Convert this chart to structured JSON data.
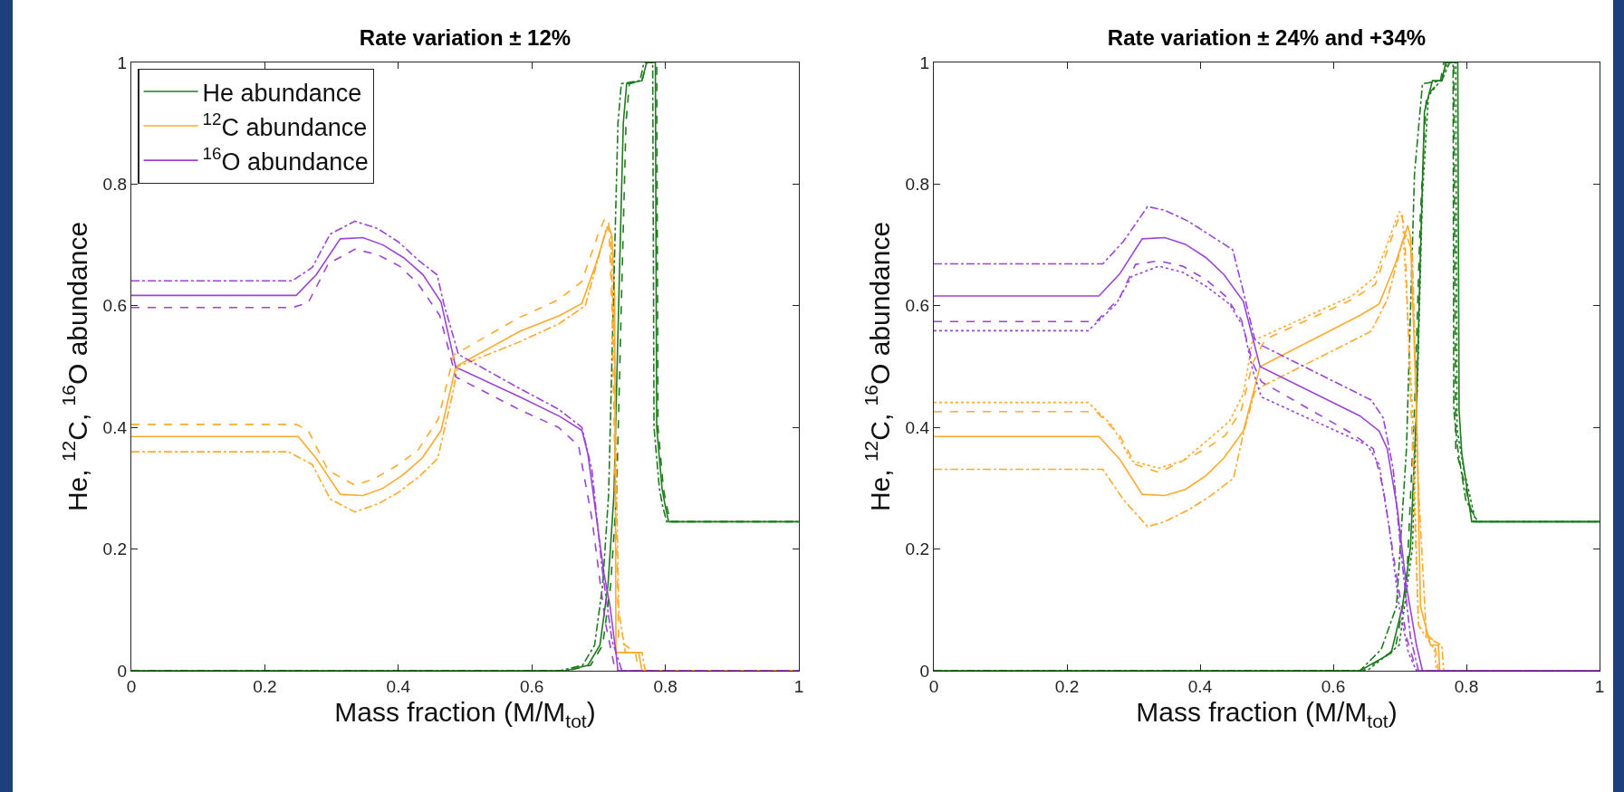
{
  "chart_data": [
    {
      "type": "line",
      "title": "Rate variation ± 12%",
      "xlabel": "Mass fraction (M/M$_{tot}$)",
      "ylabel": "He, $^{12}$C, $^{16}$O abundance",
      "xlim": [
        0,
        1
      ],
      "xticks": [
        0,
        0.2,
        0.4,
        0.6,
        0.8,
        1
      ],
      "ylim": [
        0,
        1
      ],
      "yticks": [
        0,
        0.2,
        0.4,
        0.6,
        0.8,
        1
      ],
      "grid": false,
      "legend": "top left",
      "series": [
        {
          "name": "He abundance",
          "color": "#1e7b1e",
          "line_style": "solid",
          "x": [
            0,
            0.65,
            0.684,
            0.702,
            0.714,
            0.723,
            0.73,
            0.737,
            0.742,
            0.765,
            0.772,
            0.785,
            0.787,
            0.795,
            0.8,
            0.805,
            1
          ],
          "values": [
            0,
            0,
            0.009,
            0.042,
            0.14,
            0.29,
            0.6,
            0.9,
            0.965,
            0.97,
            1,
            1,
            0.4,
            0.3,
            0.27,
            0.245,
            0.245
          ]
        },
        {
          "name": "$^{12}$C abundance",
          "color": "#ffaa2b",
          "line_style": "solid",
          "x": [
            0,
            0.25,
            0.277,
            0.313,
            0.347,
            0.377,
            0.407,
            0.436,
            0.464,
            0.486,
            0.582,
            0.642,
            0.675,
            0.696,
            0.711,
            0.715,
            0.72,
            0.724,
            0.726,
            0.76,
            0.765,
            1
          ],
          "values": [
            0.385,
            0.385,
            0.349,
            0.29,
            0.288,
            0.3,
            0.322,
            0.35,
            0.395,
            0.5,
            0.558,
            0.584,
            0.604,
            0.669,
            0.722,
            0.731,
            0.715,
            0.617,
            0.03,
            0.03,
            0,
            0
          ]
        },
        {
          "name": "$^{16}$O abundance",
          "color": "#9a45d6",
          "line_style": "solid",
          "x": [
            0,
            0.247,
            0.277,
            0.313,
            0.347,
            0.377,
            0.408,
            0.437,
            0.464,
            0.486,
            0.582,
            0.642,
            0.675,
            0.684,
            0.696,
            0.708,
            0.717,
            0.726,
            0.729,
            1
          ],
          "values": [
            0.617,
            0.617,
            0.651,
            0.71,
            0.712,
            0.7,
            0.679,
            0.651,
            0.606,
            0.499,
            0.45,
            0.418,
            0.395,
            0.356,
            0.258,
            0.16,
            0.107,
            0.029,
            0,
            0
          ]
        },
        {
          "color": "#1e7b1e",
          "line_style": "dashed",
          "x": [
            0,
            0.654,
            0.688,
            0.706,
            0.718,
            0.727,
            0.734,
            0.741,
            0.746,
            0.765,
            0.772,
            0.787,
            0.789,
            0.797,
            0.802,
            0.808,
            1
          ],
          "values": [
            0,
            0,
            0.009,
            0.042,
            0.14,
            0.29,
            0.6,
            0.9,
            0.965,
            0.97,
            1,
            1,
            0.4,
            0.3,
            0.27,
            0.245,
            0.245
          ]
        },
        {
          "color": "#1e7b1e",
          "line_style": "dashdot",
          "x": [
            0,
            0.642,
            0.676,
            0.694,
            0.706,
            0.715,
            0.722,
            0.729,
            0.734,
            0.762,
            0.768,
            0.781,
            0.783,
            0.791,
            0.796,
            0.802,
            1
          ],
          "values": [
            0,
            0,
            0.009,
            0.042,
            0.14,
            0.29,
            0.6,
            0.9,
            0.965,
            0.97,
            1,
            1,
            0.4,
            0.3,
            0.27,
            0.245,
            0.245
          ]
        },
        {
          "color": "#ffaa2b",
          "line_style": "dashed",
          "x": [
            0,
            0.247,
            0.265,
            0.295,
            0.335,
            0.363,
            0.396,
            0.429,
            0.46,
            0.483,
            0.58,
            0.64,
            0.675,
            0.7,
            0.71,
            0.715,
            0.72,
            0.725,
            0.73,
            0.755,
            0.76,
            1
          ],
          "values": [
            0.405,
            0.405,
            0.395,
            0.329,
            0.305,
            0.315,
            0.336,
            0.362,
            0.414,
            0.519,
            0.58,
            0.61,
            0.64,
            0.72,
            0.745,
            0.74,
            0.6,
            0.3,
            0.05,
            0.03,
            0,
            0
          ]
        },
        {
          "color": "#ffaa2b",
          "line_style": "dashdot",
          "x": [
            0,
            0.235,
            0.271,
            0.298,
            0.335,
            0.369,
            0.4,
            0.432,
            0.459,
            0.481,
            0.489,
            0.58,
            0.64,
            0.68,
            0.7,
            0.712,
            0.718,
            0.724,
            0.73,
            0.74,
            0.765,
            0.77,
            1
          ],
          "values": [
            0.36,
            0.36,
            0.339,
            0.282,
            0.261,
            0.274,
            0.293,
            0.32,
            0.349,
            0.454,
            0.5,
            0.54,
            0.57,
            0.6,
            0.68,
            0.73,
            0.72,
            0.5,
            0.1,
            0.03,
            0.03,
            0,
            0
          ]
        },
        {
          "color": "#9a45d6",
          "line_style": "dashed",
          "x": [
            0,
            0.241,
            0.265,
            0.295,
            0.335,
            0.369,
            0.402,
            0.429,
            0.462,
            0.486,
            0.58,
            0.64,
            0.67,
            0.69,
            0.71,
            0.725,
            1
          ],
          "values": [
            0.597,
            0.597,
            0.605,
            0.669,
            0.693,
            0.684,
            0.665,
            0.637,
            0.584,
            0.483,
            0.43,
            0.4,
            0.37,
            0.25,
            0.08,
            0,
            0
          ]
        },
        {
          "color": "#9a45d6",
          "line_style": "dashdot",
          "x": [
            0,
            0.241,
            0.271,
            0.298,
            0.335,
            0.369,
            0.4,
            0.432,
            0.458,
            0.468,
            0.49,
            0.58,
            0.64,
            0.675,
            0.69,
            0.705,
            0.72,
            0.735,
            1
          ],
          "values": [
            0.641,
            0.641,
            0.663,
            0.718,
            0.739,
            0.727,
            0.705,
            0.673,
            0.651,
            0.604,
            0.52,
            0.465,
            0.43,
            0.4,
            0.33,
            0.17,
            0.05,
            0,
            0
          ]
        }
      ]
    },
    {
      "type": "line",
      "title": "Rate variation ± 24% and +34%",
      "xlabel": "Mass fraction (M/M$_{tot}$)",
      "ylabel": "He, $^{12}$C, $^{16}$O abundance",
      "xlim": [
        0,
        1
      ],
      "xticks": [
        0,
        0.2,
        0.4,
        0.6,
        0.8,
        1
      ],
      "ylim": [
        0,
        1
      ],
      "yticks": [
        0,
        0.2,
        0.4,
        0.6,
        0.8,
        1
      ],
      "grid": false,
      "legend": false,
      "series": [
        {
          "color": "#1e7b1e",
          "line_style": "solid",
          "x": [
            0,
            0.64,
            0.687,
            0.704,
            0.716,
            0.725,
            0.731,
            0.737,
            0.749,
            0.763,
            0.769,
            0.787,
            0.789,
            0.793,
            0.808,
            1
          ],
          "values": [
            0,
            0,
            0.029,
            0.106,
            0.203,
            0.429,
            0.687,
            0.919,
            0.97,
            0.97,
            1,
            1,
            0.429,
            0.358,
            0.245,
            0.245
          ]
        },
        {
          "color": "#1e7b1e",
          "line_style": "dashed",
          "x": [
            0,
            0.645,
            0.693,
            0.71,
            0.722,
            0.731,
            0.74,
            0.761,
            0.766,
            0.781,
            0.784,
            0.796,
            0.811,
            1
          ],
          "values": [
            0,
            0,
            0.035,
            0.139,
            0.429,
            0.752,
            0.945,
            0.97,
            1,
            1,
            0.365,
            0.313,
            0.245,
            0.245
          ]
        },
        {
          "color": "#1e7b1e",
          "line_style": "dashdot",
          "x": [
            0,
            0.64,
            0.672,
            0.695,
            0.71,
            0.722,
            0.734,
            0.763,
            0.775,
            0.78,
            0.781,
            0.787,
            0.799,
            0.817,
            1
          ],
          "values": [
            0,
            0,
            0.035,
            0.106,
            0.365,
            0.816,
            0.965,
            0.97,
            1,
            1,
            0.429,
            0.365,
            0.281,
            0.245,
            0.245
          ]
        },
        {
          "color": "#1e7b1e",
          "line_style": "dotted",
          "x": [
            0,
            0.651,
            0.699,
            0.719,
            0.727,
            0.734,
            0.743,
            0.761,
            0.772,
            0.784,
            0.786,
            0.796,
            0.814,
            1
          ],
          "values": [
            0,
            0,
            0.042,
            0.203,
            0.494,
            0.784,
            0.945,
            0.97,
            1,
            1,
            0.397,
            0.332,
            0.245,
            0.245
          ]
        },
        {
          "color": "#ffaa2b",
          "line_style": "solid",
          "x": [
            0,
            0.248,
            0.279,
            0.313,
            0.347,
            0.378,
            0.409,
            0.436,
            0.465,
            0.49,
            0.64,
            0.669,
            0.693,
            0.712,
            0.716,
            0.725,
            0.731,
            0.746,
            0.758,
            0.76,
            1
          ],
          "values": [
            0.385,
            0.385,
            0.348,
            0.29,
            0.288,
            0.298,
            0.321,
            0.35,
            0.394,
            0.5,
            0.584,
            0.603,
            0.668,
            0.732,
            0.713,
            0.429,
            0.106,
            0.042,
            0.042,
            0,
            0
          ]
        },
        {
          "color": "#ffaa2b",
          "line_style": "dashed",
          "x": [
            0,
            0.244,
            0.279,
            0.303,
            0.338,
            0.374,
            0.409,
            0.438,
            0.462,
            0.479,
            0.498,
            0.628,
            0.663,
            0.701,
            0.707,
            0.719,
            0.728,
            0.752,
            0.758,
            1
          ],
          "values": [
            0.426,
            0.426,
            0.387,
            0.339,
            0.326,
            0.345,
            0.365,
            0.387,
            0.429,
            0.506,
            0.545,
            0.61,
            0.635,
            0.752,
            0.732,
            0.365,
            0.074,
            0.048,
            0,
            0
          ]
        },
        {
          "color": "#ffaa2b",
          "line_style": "dashdot",
          "x": [
            0,
            0.254,
            0.285,
            0.321,
            0.347,
            0.382,
            0.415,
            0.45,
            0.465,
            0.482,
            0.494,
            0.657,
            0.681,
            0.704,
            0.71,
            0.719,
            0.728,
            0.74,
            0.763,
            0.766,
            1
          ],
          "values": [
            0.331,
            0.331,
            0.281,
            0.237,
            0.245,
            0.264,
            0.287,
            0.316,
            0.39,
            0.458,
            0.468,
            0.558,
            0.61,
            0.706,
            0.716,
            0.687,
            0.3,
            0.055,
            0.042,
            0,
            0
          ]
        },
        {
          "color": "#ffaa2b",
          "line_style": "dotted",
          "x": [
            0,
            0.232,
            0.268,
            0.297,
            0.338,
            0.374,
            0.409,
            0.444,
            0.465,
            0.479,
            0.491,
            0.628,
            0.663,
            0.699,
            0.704,
            0.719,
            0.728,
            0.752,
            0.755,
            1
          ],
          "values": [
            0.441,
            0.441,
            0.403,
            0.345,
            0.333,
            0.345,
            0.377,
            0.41,
            0.455,
            0.545,
            0.548,
            0.616,
            0.648,
            0.755,
            0.748,
            0.429,
            0.074,
            0.035,
            0,
            0
          ]
        },
        {
          "color": "#9a45d6",
          "line_style": "solid",
          "x": [
            0,
            0.248,
            0.279,
            0.313,
            0.347,
            0.378,
            0.409,
            0.436,
            0.465,
            0.49,
            0.64,
            0.669,
            0.681,
            0.696,
            0.71,
            0.725,
            0.734,
            1
          ],
          "values": [
            0.616,
            0.616,
            0.652,
            0.71,
            0.712,
            0.701,
            0.679,
            0.651,
            0.607,
            0.5,
            0.419,
            0.394,
            0.365,
            0.268,
            0.139,
            0.042,
            0,
            0
          ]
        },
        {
          "color": "#9a45d6",
          "line_style": "dashed",
          "x": [
            0,
            0.244,
            0.279,
            0.303,
            0.338,
            0.374,
            0.409,
            0.438,
            0.462,
            0.479,
            0.492,
            0.628,
            0.66,
            0.675,
            0.693,
            0.71,
            0.725,
            1
          ],
          "values": [
            0.574,
            0.574,
            0.613,
            0.668,
            0.674,
            0.665,
            0.643,
            0.616,
            0.577,
            0.506,
            0.475,
            0.39,
            0.365,
            0.3,
            0.171,
            0.055,
            0,
            0
          ]
        },
        {
          "color": "#9a45d6",
          "line_style": "dashdot",
          "x": [
            0,
            0.254,
            0.285,
            0.321,
            0.347,
            0.382,
            0.415,
            0.449,
            0.465,
            0.482,
            0.492,
            0.657,
            0.675,
            0.69,
            0.701,
            0.716,
            0.728,
            1
          ],
          "values": [
            0.669,
            0.669,
            0.706,
            0.763,
            0.757,
            0.739,
            0.716,
            0.692,
            0.623,
            0.545,
            0.535,
            0.445,
            0.416,
            0.332,
            0.203,
            0.055,
            0,
            0
          ]
        },
        {
          "color": "#9a45d6",
          "line_style": "dotted",
          "x": [
            0,
            0.232,
            0.274,
            0.297,
            0.338,
            0.374,
            0.409,
            0.444,
            0.465,
            0.479,
            0.492,
            0.651,
            0.669,
            0.684,
            0.699,
            0.713,
            0.725,
            1
          ],
          "values": [
            0.559,
            0.559,
            0.603,
            0.648,
            0.665,
            0.655,
            0.632,
            0.603,
            0.565,
            0.494,
            0.45,
            0.371,
            0.339,
            0.235,
            0.106,
            0.029,
            0,
            0
          ]
        }
      ]
    }
  ]
}
